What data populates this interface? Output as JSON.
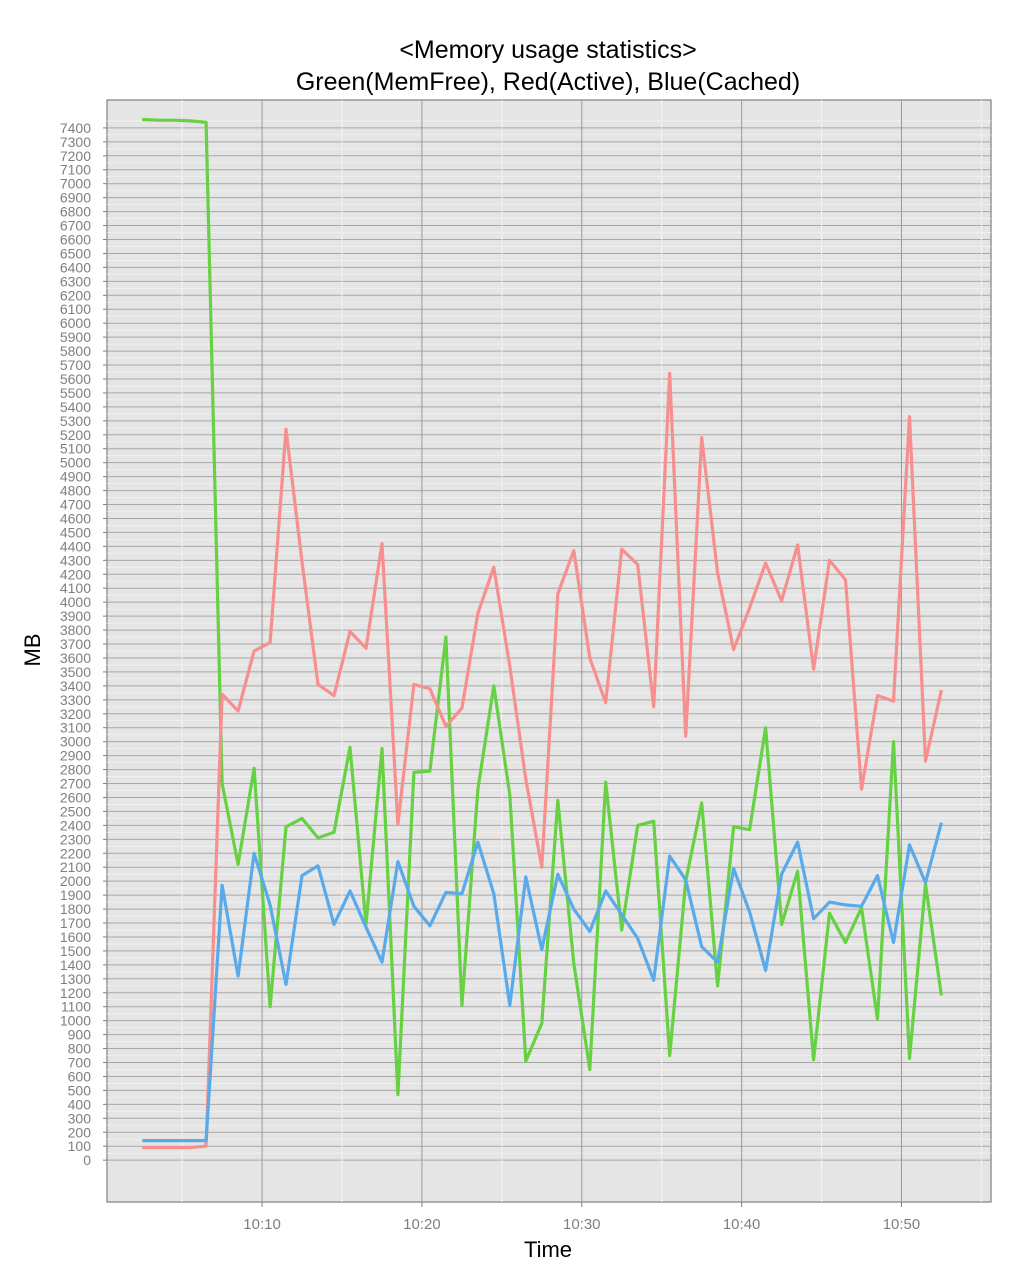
{
  "chart_data": {
    "type": "line",
    "title": "<Memory usage statistics>",
    "subtitle": "Green(MemFree), Red(Active), Blue(Cached)",
    "xlabel": "Time",
    "ylabel": "MB",
    "x_tick_labels": [
      "10:10",
      "10:20",
      "10:30",
      "10:40",
      "10:50"
    ],
    "x_tick_minutes": [
      10,
      20,
      30,
      40,
      50
    ],
    "xlim_minutes": [
      0.3,
      55.6
    ],
    "ylim": [
      -300,
      7600
    ],
    "y_tick_step": 100,
    "y_tick_max": 7400,
    "grid": true,
    "background": "#e5e5e5",
    "x_minutes": [
      2.5,
      3.5,
      4.5,
      5.5,
      6.5,
      7.5,
      8.5,
      9.5,
      10.5,
      11.5,
      12.5,
      13.5,
      14.5,
      15.5,
      16.5,
      17.5,
      18.5,
      19.5,
      20.5,
      21.5,
      22.5,
      23.5,
      24.5,
      25.5,
      26.5,
      27.5,
      28.5,
      29.5,
      30.5,
      31.5,
      32.5,
      33.5,
      34.5,
      35.5,
      36.5,
      37.5,
      38.5,
      39.5,
      40.5,
      41.5,
      42.5,
      43.5,
      44.5,
      45.5,
      46.5,
      47.5,
      48.5,
      49.5,
      50.5,
      51.5,
      52.5
    ],
    "series": [
      {
        "color": "#66d142",
        "values": [
          7460,
          7455,
          7455,
          7450,
          7440,
          2700,
          2120,
          2810,
          1100,
          2390,
          2450,
          2310,
          2350,
          2960,
          1690,
          2950,
          470,
          2780,
          2790,
          3750,
          1110,
          2660,
          3400,
          2620,
          710,
          980,
          2580,
          1410,
          650,
          2710,
          1650,
          2400,
          2430,
          750,
          2000,
          2560,
          1250,
          2390,
          2370,
          3100,
          1690,
          2070,
          720,
          1770,
          1560,
          1810,
          1010,
          3000,
          730,
          1980,
          1180
        ]
      },
      {
        "color": "#f88f8f",
        "values": [
          90,
          90,
          90,
          90,
          100,
          3340,
          3220,
          3650,
          3710,
          5240,
          4290,
          3410,
          3330,
          3790,
          3670,
          4420,
          2410,
          3410,
          3380,
          3110,
          3240,
          3920,
          4250,
          3540,
          2730,
          2100,
          4060,
          4370,
          3600,
          3280,
          4380,
          4270,
          3250,
          5640,
          3040,
          5180,
          4210,
          3660,
          3960,
          4280,
          4010,
          4410,
          3520,
          4300,
          4160,
          2660,
          3330,
          3290,
          5330,
          2860,
          3370
        ]
      },
      {
        "color": "#59aaeb",
        "values": [
          140,
          140,
          140,
          140,
          140,
          1970,
          1320,
          2200,
          1830,
          1260,
          2040,
          2110,
          1690,
          1930,
          1670,
          1420,
          2140,
          1820,
          1680,
          1920,
          1910,
          2280,
          1910,
          1110,
          2030,
          1510,
          2050,
          1800,
          1640,
          1930,
          1760,
          1590,
          1290,
          2180,
          2010,
          1530,
          1420,
          2090,
          1780,
          1360,
          2050,
          2280,
          1730,
          1850,
          1830,
          1820,
          2040,
          1560,
          2260,
          1990,
          2420
        ]
      }
    ]
  }
}
